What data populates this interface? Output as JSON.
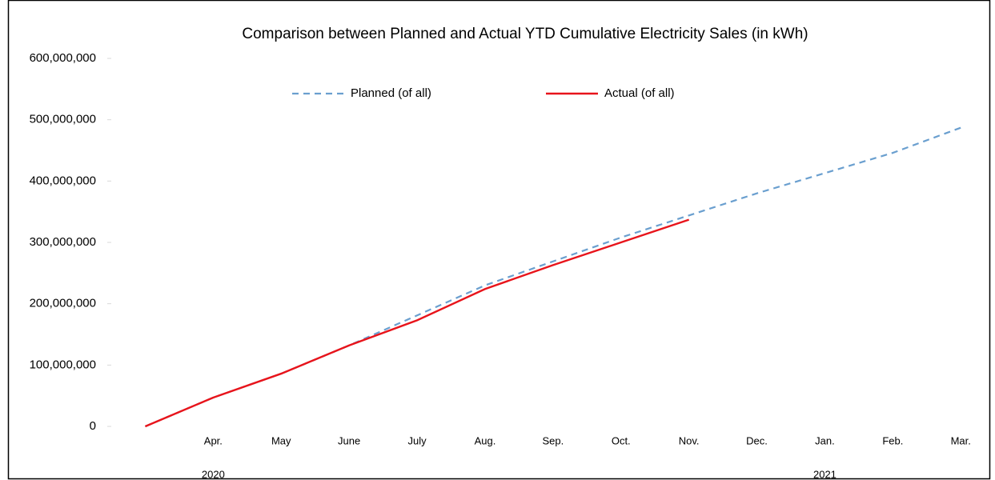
{
  "chart_data": {
    "type": "line",
    "title": "Comparison between Planned and Actual YTD Cumulative Electricity Sales (in kWh)",
    "categories": [
      null,
      "Apr.",
      "May",
      "June",
      "July",
      "Aug.",
      "Sep.",
      "Oct.",
      "Nov.",
      "Dec.",
      "Jan.",
      "Feb.",
      "Mar."
    ],
    "year_labels": [
      "2020",
      "2021"
    ],
    "series": [
      {
        "name": "Planned (of all)",
        "color": "#6a9fcf",
        "dashed": true,
        "values": [
          0,
          47000000,
          86000000,
          132000000,
          181000000,
          230000000,
          269000000,
          308000000,
          344000000,
          380000000,
          413000000,
          446000000,
          487000000
        ]
      },
      {
        "name": "Actual (of all)",
        "color": "#e8141b",
        "dashed": false,
        "values": [
          0,
          47000000,
          86000000,
          132000000,
          173000000,
          224000000,
          263000000,
          300000000,
          337000000,
          null,
          null,
          null,
          null
        ]
      }
    ],
    "ylim": [
      0,
      600000000
    ],
    "yticks": [
      0,
      {
        "value": 100000000,
        "label": "100,000,000"
      },
      {
        "value": 200000000,
        "label": "200,000,000"
      },
      {
        "value": 300000000,
        "label": "300,000,000"
      },
      {
        "value": 400000000,
        "label": "400,000,000"
      },
      {
        "value": 500000000,
        "label": "500,000,000"
      },
      {
        "value": 600000000,
        "label": "600,000,000"
      }
    ],
    "grid": false,
    "legend": "top"
  }
}
